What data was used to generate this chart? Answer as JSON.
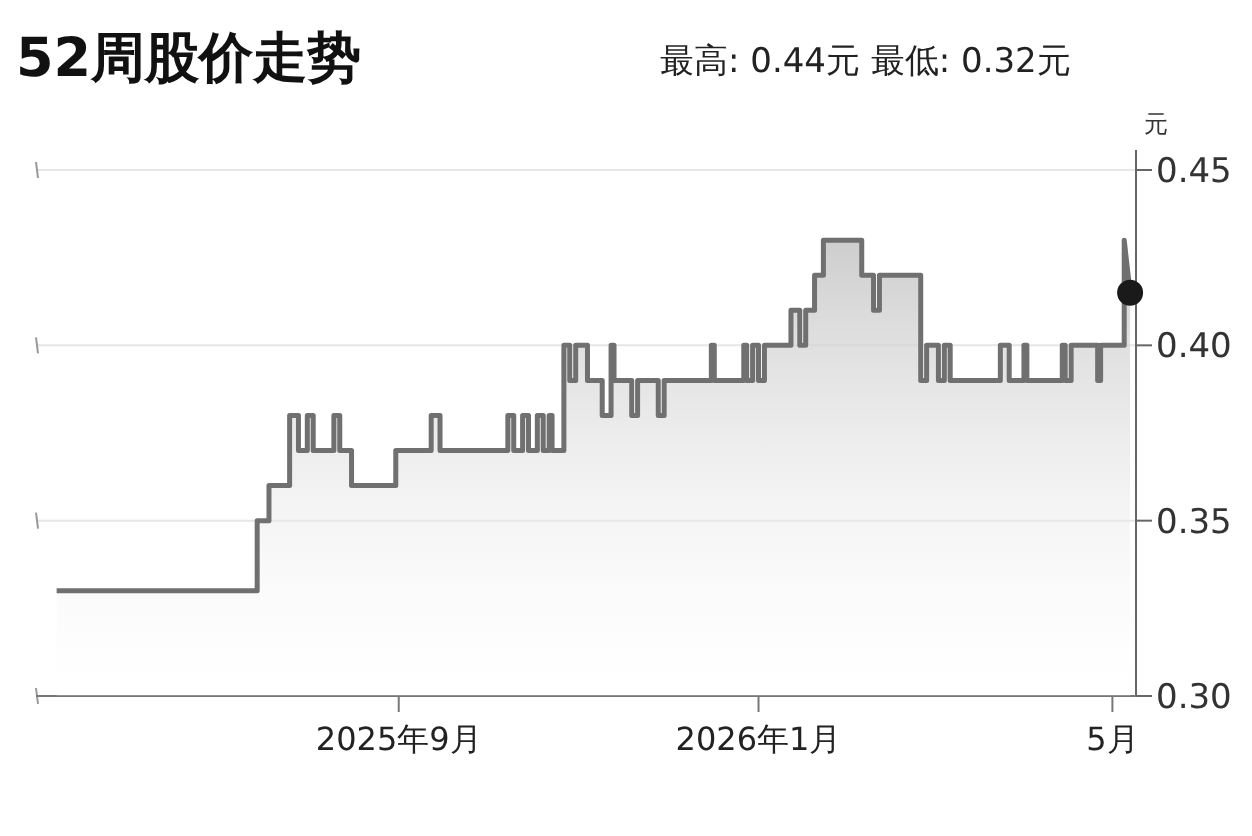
{
  "chart_data": {
    "type": "area",
    "title": "52周股价走势",
    "subtitle": "最高: 0.44元   最低: 0.32元",
    "ylabel": "元",
    "xlim": [
      "2025-05-01",
      "2026-05-09"
    ],
    "xticks": [
      {
        "value": "2025-09-01",
        "label": "2025年9月"
      },
      {
        "value": "2026-01-01",
        "label": "2026年1月"
      },
      {
        "value": "2026-05-01",
        "label": "5月"
      }
    ],
    "ylim": [
      0.3,
      0.45
    ],
    "yticks": [
      0.45,
      {
        "value": 0.4,
        "label": "0.40"
      },
      0.35,
      {
        "value": 0.3,
        "label": "0.30"
      }
    ],
    "grid": "y",
    "series": [
      {
        "color": "#707070",
        "x": [
          "2025-05-08",
          "2025-07-15",
          "2025-07-15",
          "2025-07-19",
          "2025-07-19",
          "2025-07-26",
          "2025-07-26",
          "2025-07-29",
          "2025-07-29",
          "2025-08-01",
          "2025-08-01",
          "2025-08-03",
          "2025-08-03",
          "2025-08-10",
          "2025-08-10",
          "2025-08-12",
          "2025-08-12",
          "2025-08-16",
          "2025-08-16",
          "2025-08-31",
          "2025-08-31",
          "2025-09-12",
          "2025-09-12",
          "2025-09-15",
          "2025-09-15",
          "2025-10-08",
          "2025-10-08",
          "2025-10-10",
          "2025-10-10",
          "2025-10-13",
          "2025-10-13",
          "2025-10-15",
          "2025-10-15",
          "2025-10-18",
          "2025-10-18",
          "2025-10-20",
          "2025-10-20",
          "2025-10-22",
          "2025-10-22",
          "2025-10-23",
          "2025-10-23",
          "2025-10-27",
          "2025-10-27",
          "2025-10-29",
          "2025-10-29",
          "2025-10-31",
          "2025-10-31",
          "2025-11-04",
          "2025-11-04",
          "2025-11-09",
          "2025-11-09",
          "2025-11-12",
          "2025-11-12",
          "2025-11-13",
          "2025-11-13",
          "2025-11-19",
          "2025-11-19",
          "2025-11-21",
          "2025-11-21",
          "2025-11-28",
          "2025-11-28",
          "2025-11-30",
          "2025-11-30",
          "2025-12-16",
          "2025-12-16",
          "2025-12-17",
          "2025-12-17",
          "2025-12-27",
          "2025-12-27",
          "2025-12-28",
          "2025-12-28",
          "2025-12-30",
          "2025-12-30",
          "2026-01-01",
          "2026-01-01",
          "2026-01-03",
          "2026-01-03",
          "2026-01-12",
          "2026-01-12",
          "2026-01-15",
          "2026-01-15",
          "2026-01-17",
          "2026-01-17",
          "2026-01-20",
          "2026-01-20",
          "2026-01-23",
          "2026-01-23",
          "2026-02-05",
          "2026-02-05",
          "2026-02-09",
          "2026-02-09",
          "2026-02-11",
          "2026-02-11",
          "2026-02-25",
          "2026-02-25",
          "2026-02-27",
          "2026-02-27",
          "2026-03-03",
          "2026-03-03",
          "2026-03-05",
          "2026-03-05",
          "2026-03-07",
          "2026-03-07",
          "2026-03-24",
          "2026-03-24",
          "2026-03-27",
          "2026-03-27",
          "2026-04-01",
          "2026-04-01",
          "2026-04-02",
          "2026-04-02",
          "2026-04-14",
          "2026-04-14",
          "2026-04-15",
          "2026-04-15",
          "2026-04-17",
          "2026-04-17",
          "2026-04-26",
          "2026-04-26",
          "2026-04-27",
          "2026-04-27",
          "2026-05-05",
          "2026-05-05",
          "2026-05-07"
        ],
        "values": [
          0.33,
          0.33,
          0.35,
          0.35,
          0.36,
          0.36,
          0.38,
          0.38,
          0.37,
          0.37,
          0.38,
          0.38,
          0.37,
          0.37,
          0.38,
          0.38,
          0.37,
          0.37,
          0.36,
          0.36,
          0.37,
          0.37,
          0.38,
          0.38,
          0.37,
          0.37,
          0.38,
          0.38,
          0.37,
          0.37,
          0.38,
          0.38,
          0.37,
          0.37,
          0.38,
          0.38,
          0.37,
          0.37,
          0.38,
          0.38,
          0.37,
          0.37,
          0.4,
          0.4,
          0.39,
          0.39,
          0.4,
          0.4,
          0.39,
          0.39,
          0.38,
          0.38,
          0.4,
          0.4,
          0.39,
          0.39,
          0.38,
          0.38,
          0.39,
          0.39,
          0.38,
          0.38,
          0.39,
          0.39,
          0.4,
          0.4,
          0.39,
          0.39,
          0.4,
          0.4,
          0.39,
          0.39,
          0.4,
          0.4,
          0.39,
          0.39,
          0.4,
          0.4,
          0.41,
          0.41,
          0.4,
          0.4,
          0.41,
          0.41,
          0.42,
          0.42,
          0.43,
          0.43,
          0.42,
          0.42,
          0.41,
          0.41,
          0.42,
          0.42,
          0.39,
          0.39,
          0.4,
          0.4,
          0.39,
          0.39,
          0.4,
          0.4,
          0.39,
          0.39,
          0.4,
          0.4,
          0.39,
          0.39,
          0.4,
          0.4,
          0.39,
          0.39,
          0.4,
          0.4,
          0.39,
          0.39,
          0.4,
          0.4,
          0.39,
          0.39,
          0.4,
          0.4,
          0.43,
          0.415
        ]
      },
      {
        "type": "scatter",
        "color": "#1a1a1a",
        "marker": "circle",
        "x": [
          "2026-05-07"
        ],
        "values": [
          0.415
        ]
      }
    ]
  }
}
